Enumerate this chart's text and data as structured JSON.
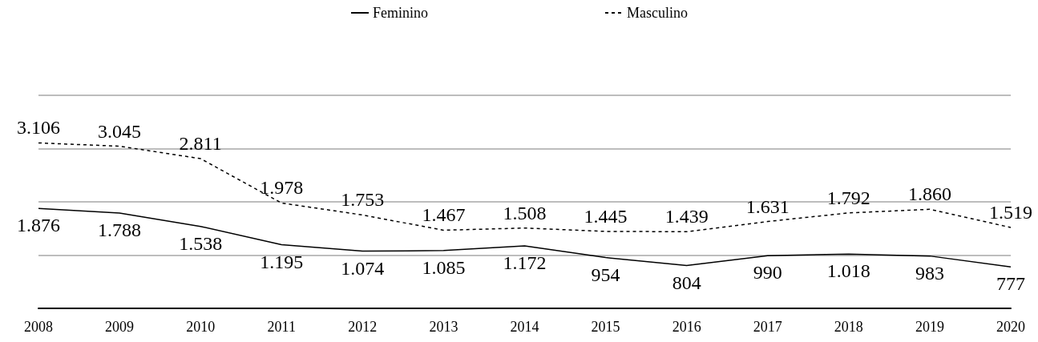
{
  "chart_data": {
    "type": "line",
    "categories": [
      "2008",
      "2009",
      "2010",
      "2011",
      "2012",
      "2013",
      "2014",
      "2015",
      "2016",
      "2017",
      "2018",
      "2019",
      "2020"
    ],
    "series": [
      {
        "name": "Feminino",
        "color": "#000000",
        "line_style": "solid",
        "values": [
          1876,
          1788,
          1538,
          1195,
          1074,
          1085,
          1172,
          954,
          804,
          990,
          1018,
          983,
          777
        ],
        "value_labels": [
          "1.876",
          "1.788",
          "1.538",
          "1.195",
          "1.074",
          "1.085",
          "1.172",
          "954",
          "804",
          "990",
          "1.018",
          "983",
          "777"
        ]
      },
      {
        "name": "Masculino",
        "color": "#000000",
        "line_style": "dashed",
        "values": [
          3106,
          3045,
          2811,
          1978,
          1753,
          1467,
          1508,
          1445,
          1439,
          1631,
          1792,
          1860,
          1519
        ],
        "value_labels": [
          "3.106",
          "3.045",
          "2.811",
          "1.978",
          "1.753",
          "1.467",
          "1.508",
          "1.445",
          "1.439",
          "1.631",
          "1.792",
          "1.860",
          "1.519"
        ]
      }
    ],
    "tick_labels": "x",
    "grid": "y",
    "legend": "top",
    "marker": "none"
  }
}
